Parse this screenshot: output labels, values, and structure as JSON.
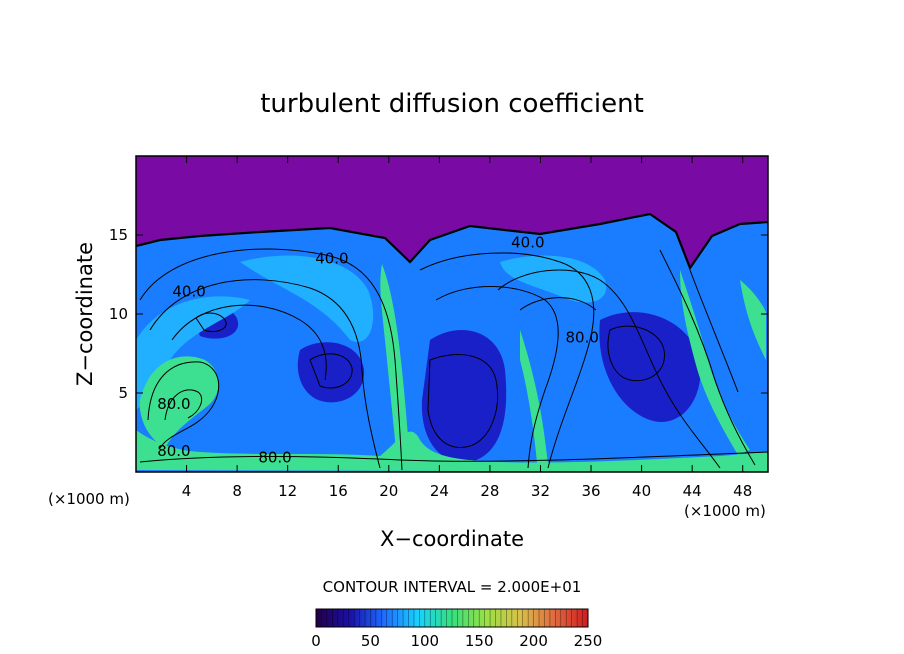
{
  "chart_data": {
    "type": "heatmap",
    "title": "turbulent diffusion coefficient",
    "xlabel": "X−coordinate",
    "ylabel": "Z−coordinate",
    "x_unit_left": "(×1000 m)",
    "x_unit_right": "(×1000 m)",
    "xlim": [
      0,
      50
    ],
    "ylim": [
      0,
      20
    ],
    "x_ticks": [
      4,
      8,
      12,
      16,
      20,
      24,
      28,
      32,
      36,
      40,
      44,
      48
    ],
    "y_ticks": [
      5,
      10,
      15
    ],
    "contour_interval_text": "CONTOUR INTERVAL =  2.000E+01",
    "contour_labels": [
      {
        "text": "40.0",
        "x": 15.5,
        "z": 13.2
      },
      {
        "text": "40.0",
        "x": 4.2,
        "z": 11.1
      },
      {
        "text": "40.0",
        "x": 31.0,
        "z": 14.2
      },
      {
        "text": "80.0",
        "x": 35.3,
        "z": 8.2
      },
      {
        "text": "80.0",
        "x": 3.0,
        "z": 4.0
      },
      {
        "text": "80.0",
        "x": 3.0,
        "z": 1.0
      },
      {
        "text": "80.0",
        "x": 11.0,
        "z": 0.6
      }
    ],
    "colorbar": {
      "min": 0,
      "max": 250,
      "ticks": [
        0,
        50,
        100,
        150,
        200,
        250
      ],
      "colors": [
        "#230046",
        "#1a10a8",
        "#1e6cff",
        "#19d2ff",
        "#36e07e",
        "#9ae044",
        "#d8c04a",
        "#e06a40",
        "#d01c20"
      ]
    },
    "field_colors": {
      "top_layer": "#7a0aa4",
      "background": "#1a7cff",
      "low": "#1a20c8",
      "mid": "#20b0ff",
      "high": "#3ce090"
    }
  }
}
